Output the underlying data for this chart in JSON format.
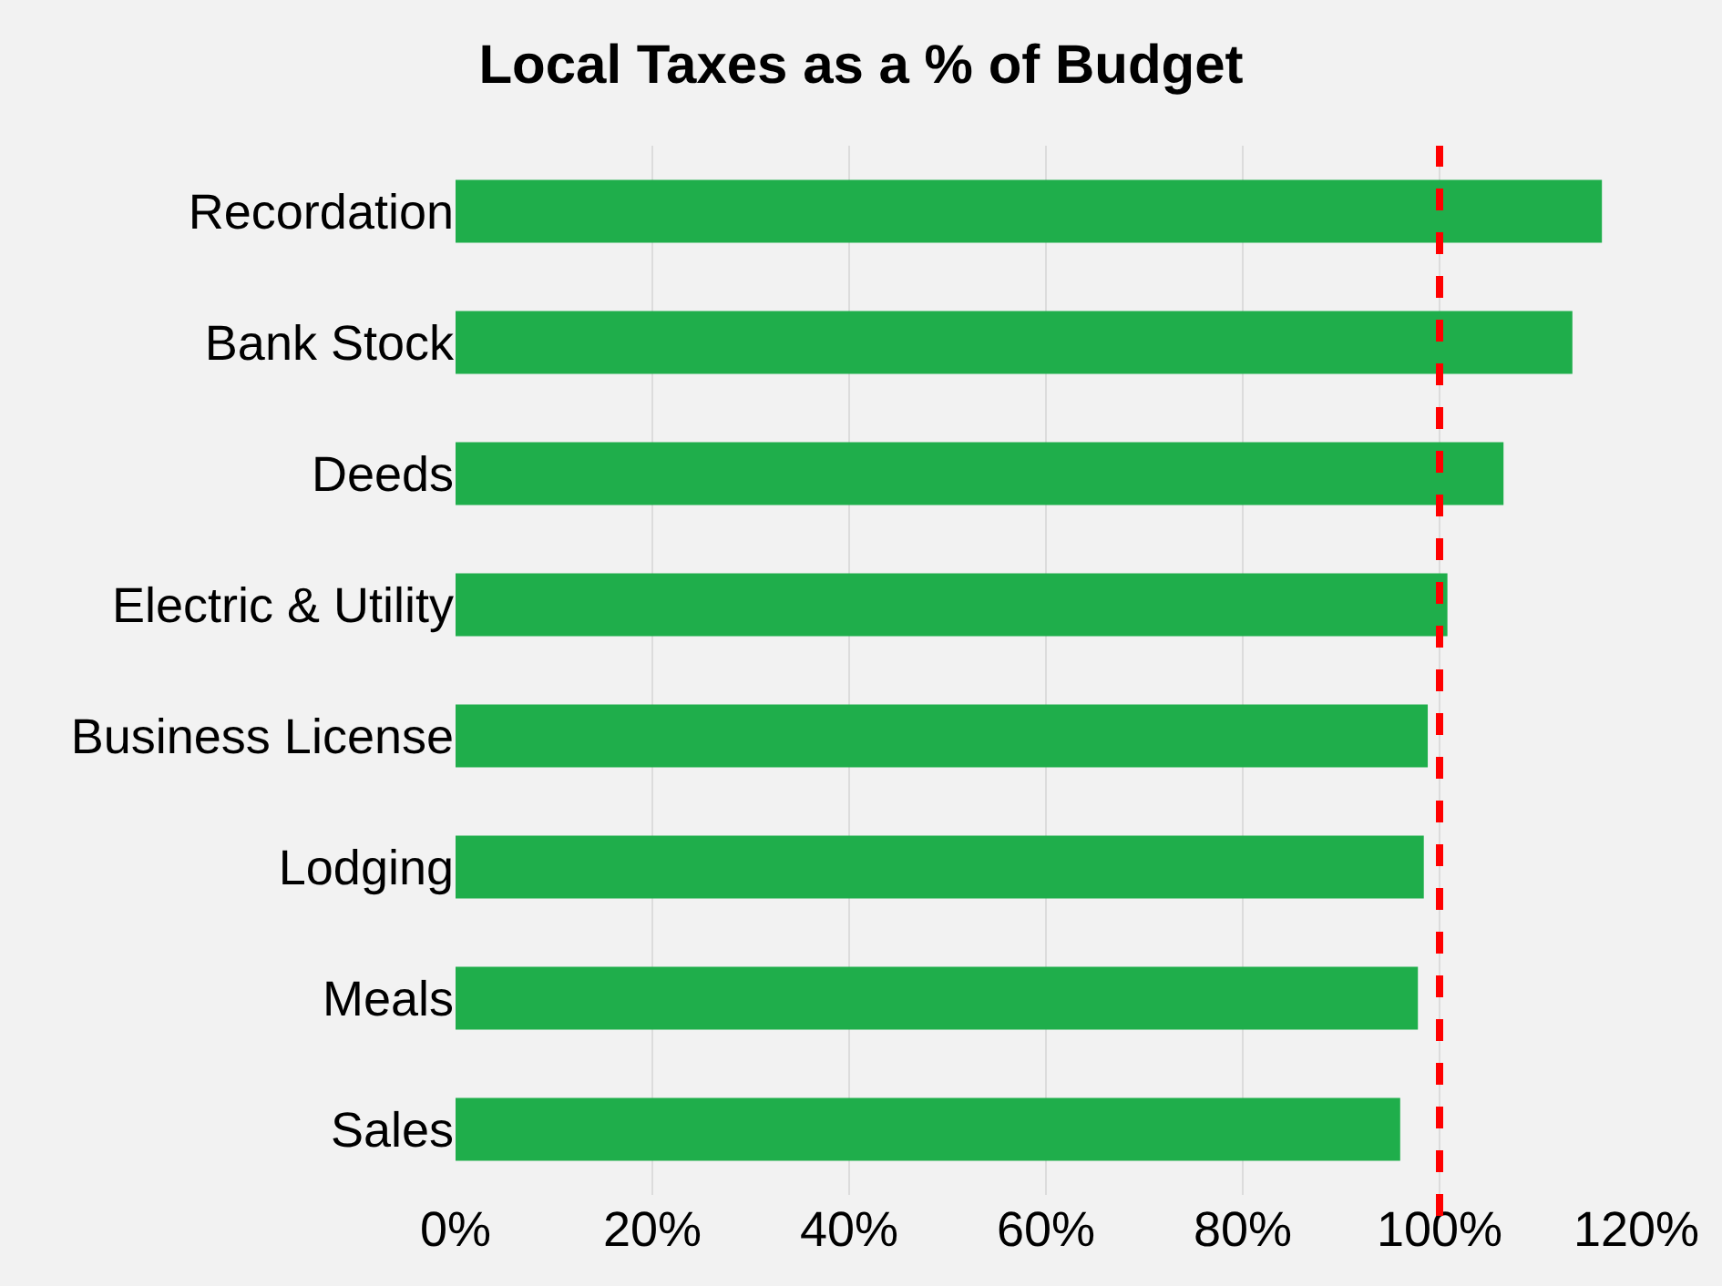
{
  "chart_data": {
    "type": "bar",
    "title": "Local Taxes as a % of Budget",
    "orientation": "horizontal",
    "categories": [
      "Recordation",
      "Bank Stock",
      "Deeds",
      "Electric & Utility",
      "Business License",
      "Lodging",
      "Meals",
      "Sales"
    ],
    "values": [
      116.5,
      113.5,
      106.5,
      100.8,
      98.8,
      98.4,
      97.8,
      96
    ],
    "color": "#1fae4b",
    "xlim": [
      0,
      120
    ],
    "xticks": [
      {
        "value": 0,
        "label": "0%"
      },
      {
        "value": 20,
        "label": "20%"
      },
      {
        "value": 40,
        "label": "40%"
      },
      {
        "value": 60,
        "label": "60%"
      },
      {
        "value": 80,
        "label": "80%"
      },
      {
        "value": 100,
        "label": "100%"
      },
      {
        "value": 120,
        "label": "120%"
      }
    ],
    "grid": "x",
    "ref_lines": [
      {
        "axis": "x",
        "value": 100,
        "color": "#ff0000",
        "line_style": "dashed"
      }
    ]
  }
}
